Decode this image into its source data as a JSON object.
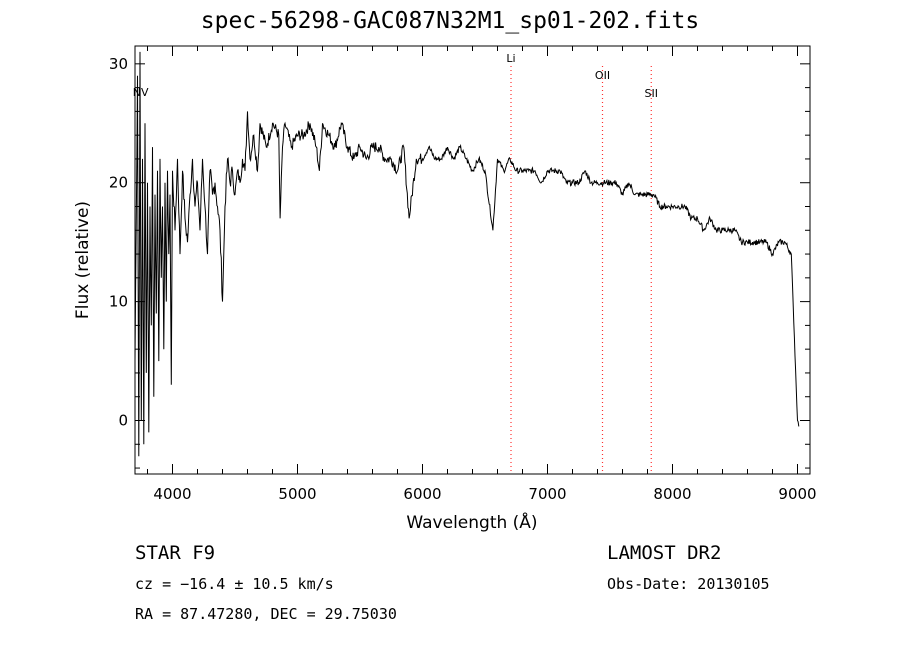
{
  "title": "spec-56298-GAC087N32M1_sp01-202.fits",
  "chart_data": {
    "type": "line",
    "xlabel": "Wavelength (Å)",
    "ylabel": "Flux (relative)",
    "xlim": [
      3700,
      9100
    ],
    "ylim": [
      -4.5,
      31.5
    ],
    "xticks": [
      4000,
      5000,
      6000,
      7000,
      8000,
      9000
    ],
    "yticks": [
      0,
      10,
      20,
      30
    ],
    "grid": false,
    "line_color": "#000000",
    "marker_color": "#ff3030",
    "lines": [
      {
        "name": "NV",
        "x": 3745
      },
      {
        "name": "Li",
        "x": 6708
      },
      {
        "name": "OII",
        "x": 7440
      },
      {
        "name": "SII",
        "x": 7830
      }
    ],
    "series": [
      {
        "x": [
          3700,
          3720,
          3730,
          3740,
          3750,
          3760,
          3770,
          3780,
          3790,
          3800,
          3810,
          3820,
          3830,
          3840,
          3850,
          3860,
          3870,
          3880,
          3890,
          3900,
          3910,
          3920,
          3930,
          3940,
          3950,
          3960,
          3970,
          3980,
          3990,
          4000,
          4020,
          4040,
          4060,
          4080,
          4100,
          4120,
          4140,
          4160,
          4180,
          4200,
          4220,
          4240,
          4260,
          4280,
          4300,
          4320,
          4340,
          4360,
          4380,
          4400,
          4420,
          4440,
          4460,
          4480,
          4500,
          4520,
          4540,
          4560,
          4580,
          4600,
          4620,
          4650,
          4680,
          4700,
          4750,
          4800,
          4850,
          4861,
          4880,
          4900,
          4950,
          5000,
          5050,
          5100,
          5150,
          5175,
          5200,
          5250,
          5300,
          5350,
          5400,
          5450,
          5500,
          5550,
          5600,
          5650,
          5700,
          5750,
          5800,
          5850,
          5893,
          5950,
          6000,
          6050,
          6100,
          6150,
          6200,
          6250,
          6300,
          6350,
          6400,
          6450,
          6500,
          6563,
          6600,
          6650,
          6700,
          6750,
          6800,
          6850,
          6900,
          6950,
          7000,
          7050,
          7100,
          7150,
          7200,
          7250,
          7300,
          7350,
          7400,
          7450,
          7500,
          7550,
          7600,
          7650,
          7700,
          7750,
          7800,
          7850,
          7900,
          7950,
          8000,
          8050,
          8100,
          8150,
          8200,
          8250,
          8300,
          8350,
          8400,
          8450,
          8500,
          8550,
          8600,
          8650,
          8700,
          8750,
          8800,
          8850,
          8900,
          8950,
          9000,
          9010
        ],
        "values": [
          5,
          29,
          -3,
          31,
          0,
          22,
          -2,
          25,
          4,
          20,
          -1,
          18,
          8,
          23,
          2,
          19,
          9,
          21,
          5,
          22,
          12,
          18,
          6,
          20,
          10,
          21,
          14,
          19,
          3,
          21,
          16,
          22,
          14,
          21,
          17,
          15,
          19,
          22,
          18,
          20,
          16,
          22,
          18,
          14,
          21,
          19,
          20,
          18,
          16,
          10,
          18,
          22,
          20,
          21,
          19,
          21,
          20,
          22,
          21,
          26,
          22,
          24,
          21,
          25,
          23,
          25,
          24,
          17,
          23,
          25,
          23,
          24,
          24,
          25,
          23,
          21,
          25,
          24,
          23,
          25,
          23,
          22,
          23,
          22,
          23,
          23,
          22,
          22,
          21,
          23,
          17,
          22,
          22,
          23,
          22,
          22,
          23,
          22,
          23,
          22,
          21,
          22,
          21,
          16,
          22,
          21,
          22,
          21,
          21,
          21,
          21,
          20,
          21,
          21,
          21,
          20,
          20,
          20,
          21,
          20,
          20,
          20,
          20,
          20,
          19,
          20,
          19,
          19,
          19,
          19,
          18,
          18,
          18,
          18,
          18,
          17,
          17,
          16,
          17,
          16,
          16,
          16,
          16,
          15,
          15,
          15,
          15,
          15,
          14,
          15,
          15,
          14,
          0,
          -0.5
        ]
      }
    ]
  },
  "footer": {
    "left_line1": "STAR    F9",
    "left_line2": "cz = −16.4 ± 10.5 km/s",
    "left_line3": "RA =  87.47280, DEC =  29.75030",
    "right_line1": "LAMOST DR2",
    "right_line2": "Obs-Date: 20130105"
  }
}
